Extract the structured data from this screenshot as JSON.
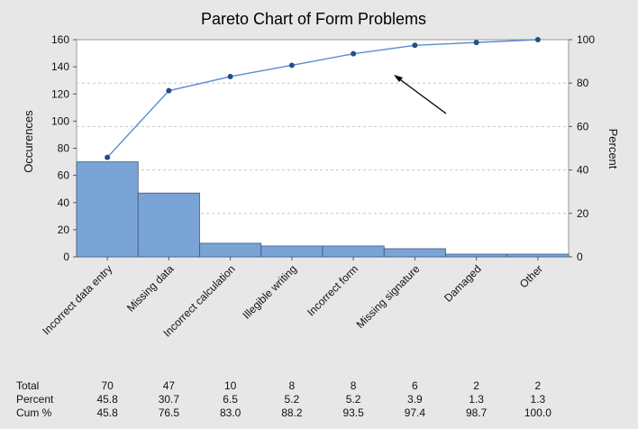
{
  "chart_data": {
    "type": "bar",
    "title": "Pareto Chart of Form Problems",
    "ylabel": "Occurences",
    "y2label": "Percent",
    "ylim": [
      0,
      160
    ],
    "y2lim": [
      0,
      100
    ],
    "yticks": [
      "0",
      "20",
      "40",
      "60",
      "80",
      "100",
      "120",
      "140",
      "160"
    ],
    "y2ticks": [
      "0",
      "20",
      "40",
      "60",
      "80",
      "100"
    ],
    "categories": [
      "Incorrect data entry",
      "Missing data",
      "Incorrect calculation",
      "Illegible writing",
      "Incorrect form",
      "Missing signature",
      "Damaged",
      "Other"
    ],
    "series": [
      {
        "type": "bar",
        "values": [
          70,
          47,
          10,
          8,
          8,
          6,
          2,
          2
        ]
      },
      {
        "type": "line",
        "values": [
          45.8,
          76.5,
          83.0,
          88.2,
          93.5,
          97.4,
          98.7,
          100.0
        ]
      }
    ],
    "grid": true,
    "annotation": "arrow pointing to cumulative percent line",
    "colors": {
      "bar": "#7aa3d6",
      "bar_edge": "#3c5a80",
      "line": "#5b8ccf",
      "marker": "#1f4f8a",
      "background": "#e7e7e7",
      "plot_bg": "#ffffff"
    },
    "table": {
      "row_labels": [
        "Total",
        "Percent",
        "Cum %"
      ],
      "rows": [
        [
          "70",
          "47",
          "10",
          "8",
          "8",
          "6",
          "2",
          "2"
        ],
        [
          "45.8",
          "30.7",
          "6.5",
          "5.2",
          "5.2",
          "3.9",
          "1.3",
          "1.3"
        ],
        [
          "45.8",
          "76.5",
          "83.0",
          "88.2",
          "93.5",
          "97.4",
          "98.7",
          "100.0"
        ]
      ]
    }
  }
}
